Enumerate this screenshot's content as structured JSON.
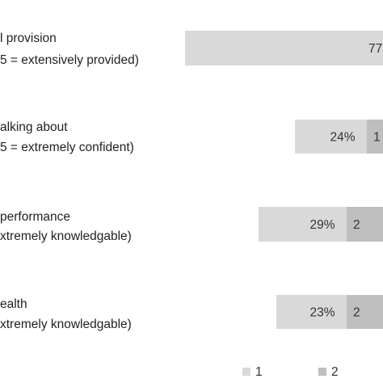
{
  "chart_data": {
    "type": "bar",
    "orientation": "horizontal",
    "stacked": true,
    "normalized": true,
    "title": "",
    "xlabel": "",
    "ylabel": "",
    "categories": [
      [
        "l provision",
        "5 = extensively provided)"
      ],
      [
        "alking about",
        "5 = extremely confident)"
      ],
      [
        "performance",
        "xtremely knowledgable)"
      ],
      [
        "ealth",
        "xtremely knowledgable)"
      ]
    ],
    "series": [
      {
        "name": "1",
        "color": "#d9d9d9",
        "values": [
          77,
          24,
          29,
          23
        ],
        "labels": [
          "77",
          "24%",
          "29%",
          "23%"
        ]
      },
      {
        "name": "2",
        "color": "#bfbfbf",
        "values": [
          0,
          10,
          20,
          20
        ],
        "labels": [
          "",
          "1",
          "2",
          "2"
        ]
      }
    ],
    "xlim": [
      0,
      100
    ],
    "legend_position": "bottom",
    "grid": false
  }
}
